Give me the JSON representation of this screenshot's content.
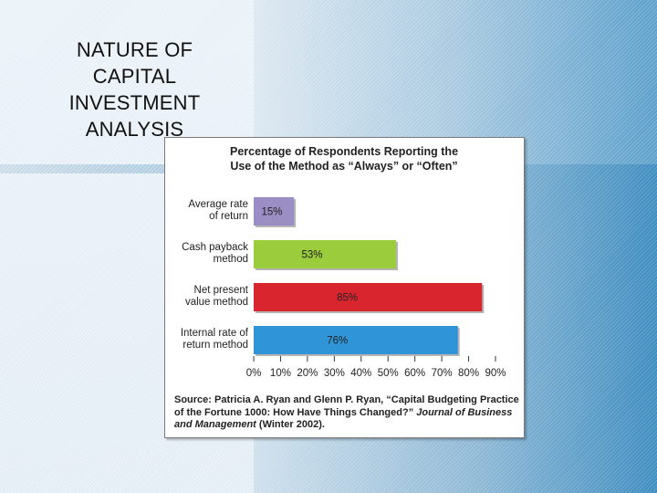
{
  "slide": {
    "title": "NATURE OF\nCAPITAL\nINVESTMENT\nANALYSIS"
  },
  "chart_data": {
    "type": "bar",
    "orientation": "horizontal",
    "title": "Percentage of Respondents Reporting the\nUse of the Method as “Always” or “Often”",
    "categories": [
      "Average rate\nof return",
      "Cash payback\nmethod",
      "Net present\nvalue method",
      "Internal rate of\nreturn method"
    ],
    "values": [
      15,
      53,
      85,
      76
    ],
    "value_labels": [
      "15%",
      "53%",
      "85%",
      "76%"
    ],
    "colors": [
      "#9b8ec4",
      "#9bcc3c",
      "#d9262e",
      "#2f94d8"
    ],
    "xlim": [
      0,
      90
    ],
    "ticks": [
      0,
      10,
      20,
      30,
      40,
      50,
      60,
      70,
      80,
      90
    ],
    "tick_labels": [
      "0%",
      "10%",
      "20%",
      "30%",
      "40%",
      "50%",
      "60%",
      "70%",
      "80%",
      "90%"
    ],
    "xlabel": "",
    "ylabel": "",
    "grid": false,
    "legend": "none"
  },
  "source": {
    "prefix": "Source: Patricia A. Ryan and Glenn P. Ryan, “Capital Budgeting Practice of the Fortune 1000: How Have Things Changed?” ",
    "journal": "Journal of Business and Management",
    "suffix": " (Winter 2002)."
  }
}
